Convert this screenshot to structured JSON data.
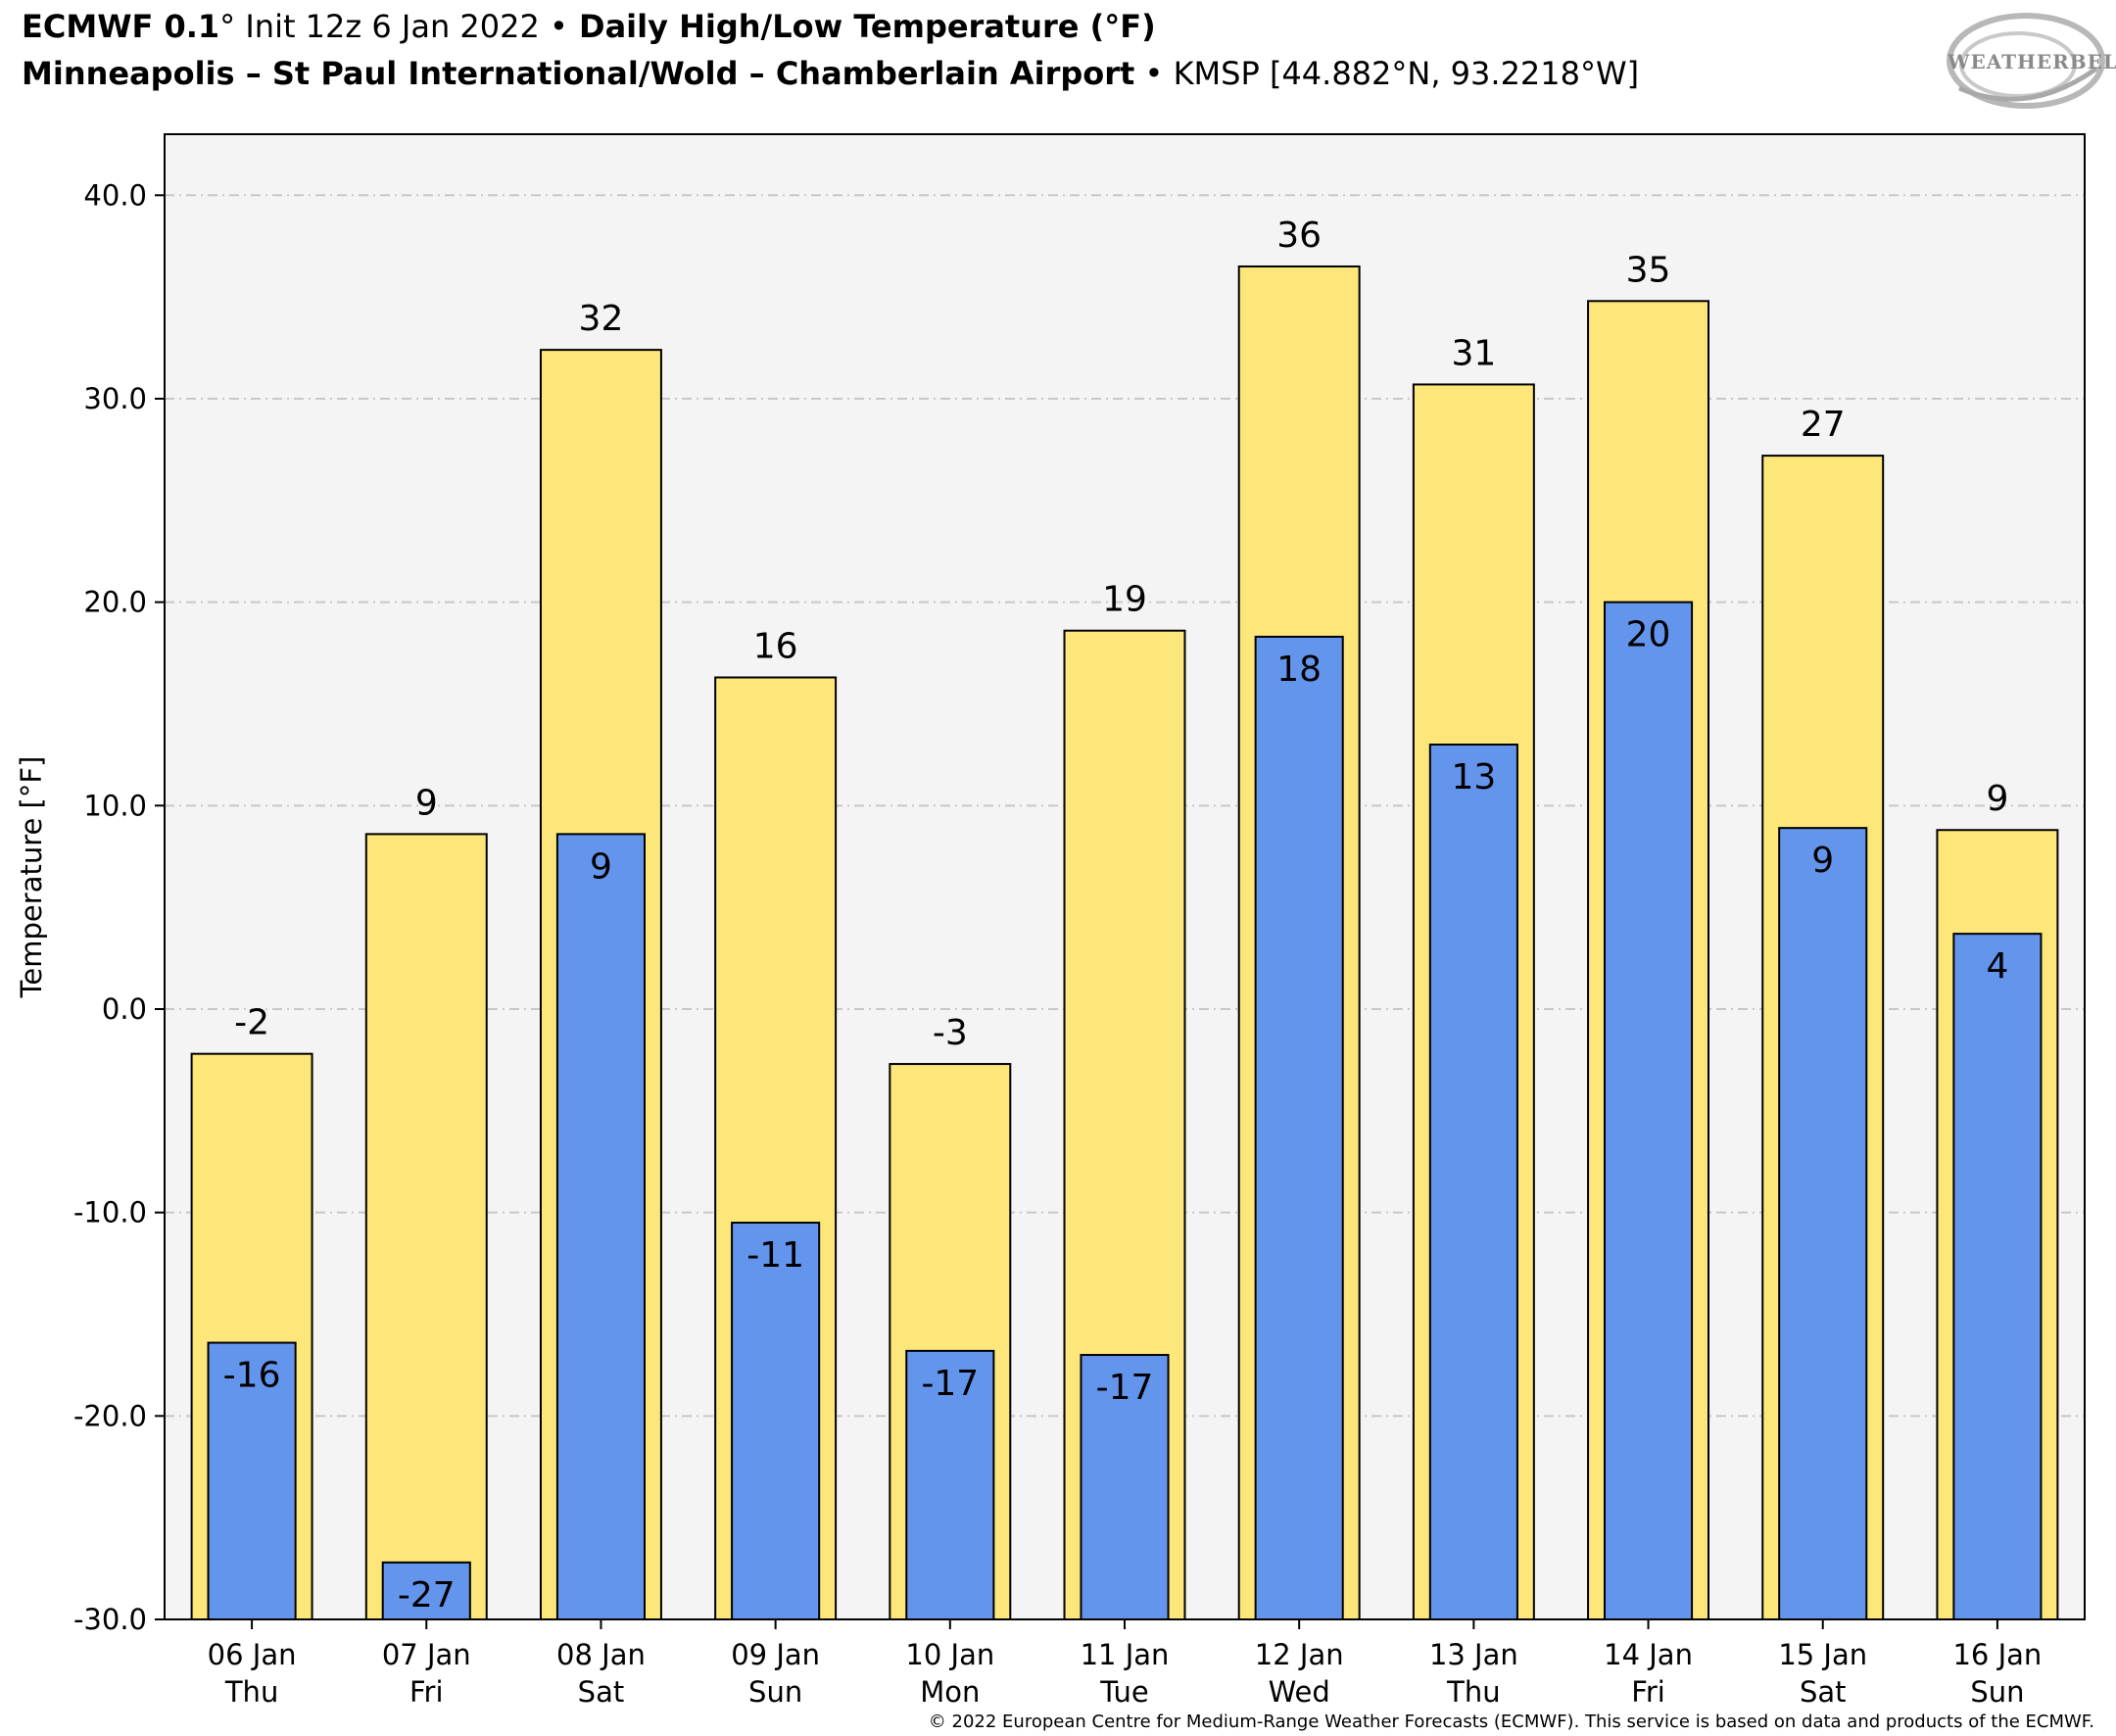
{
  "header": {
    "line1": {
      "model": "ECMWF 0.1",
      "degree": "°",
      "init": " Init 12z 6 Jan 2022 ",
      "bullet": "•",
      "product": " Daily High/Low Temperature (°F)"
    },
    "line2": {
      "station": "Minneapolis – St Paul International/Wold – Chamberlain Airport",
      "bullet": " • ",
      "id": "KMSP [44.882°N, 93.2218°W]"
    }
  },
  "logo": {
    "text": "WEATHERBELL"
  },
  "footer": {
    "text": "© 2022 European Centre for Medium-Range Weather Forecasts (ECMWF). This service is based on data and products of the ECMWF."
  },
  "chart_data": {
    "type": "bar",
    "categories": [
      {
        "date": "06 Jan",
        "day": "Thu"
      },
      {
        "date": "07 Jan",
        "day": "Fri"
      },
      {
        "date": "08 Jan",
        "day": "Sat"
      },
      {
        "date": "09 Jan",
        "day": "Sun"
      },
      {
        "date": "10 Jan",
        "day": "Mon"
      },
      {
        "date": "11 Jan",
        "day": "Tue"
      },
      {
        "date": "12 Jan",
        "day": "Wed"
      },
      {
        "date": "13 Jan",
        "day": "Thu"
      },
      {
        "date": "14 Jan",
        "day": "Fri"
      },
      {
        "date": "15 Jan",
        "day": "Sat"
      },
      {
        "date": "16 Jan",
        "day": "Sun"
      }
    ],
    "series": [
      {
        "values": [
          -2.2,
          8.6,
          32.4,
          16.3,
          -2.7,
          18.6,
          36.5,
          30.7,
          34.8,
          27.2,
          8.8
        ],
        "labels": [
          "-2",
          "9",
          "32",
          "16",
          "-3",
          "19",
          "36",
          "31",
          "35",
          "27",
          "9"
        ],
        "color": "#fde67a"
      },
      {
        "values": [
          -16.4,
          -27.2,
          8.6,
          -10.5,
          -16.8,
          -17.0,
          18.3,
          13.0,
          20.0,
          8.9,
          3.7
        ],
        "labels": [
          "-16",
          "-27",
          "9",
          "-11",
          "-17",
          "-17",
          "18",
          "13",
          "20",
          "9",
          "4"
        ],
        "color": "#6495ed"
      }
    ],
    "ylabel": "Temperature [°F]",
    "ylim": [
      -30,
      43
    ],
    "yticks": [
      "40.0",
      "30.0",
      "20.0",
      "10.0",
      "0.0",
      "-10.0",
      "-20.0",
      "-30.0"
    ],
    "grid": true,
    "plot_background": "#f4f4f4"
  }
}
